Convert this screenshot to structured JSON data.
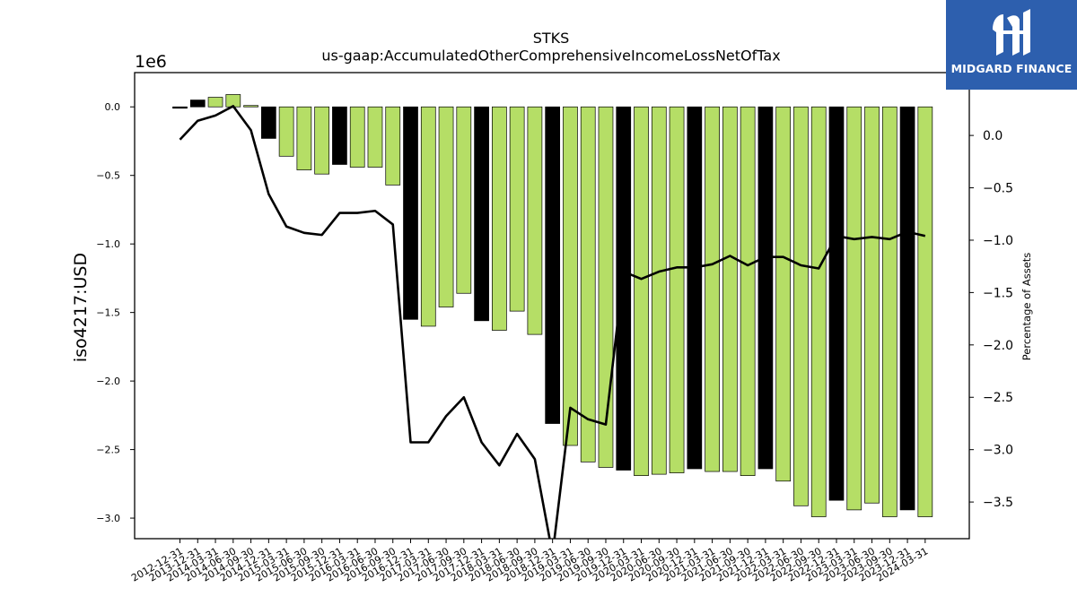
{
  "logo": {
    "text": "MIDGARD FINANCE",
    "background": "#2d5fae"
  },
  "chart_data": {
    "type": "bar",
    "title": "STKS",
    "subtitle": "us-gaap:AccumulatedOtherComprehensiveIncomeLossNetOfTax",
    "ylabel": "iso4217:USD",
    "y2label": "Percentage of Assets",
    "offset_label": "1e6",
    "ylim": [
      -3.15,
      0.25
    ],
    "y2lim": [
      -3.85,
      0.6
    ],
    "yticks": [
      0.0,
      -0.5,
      -1.0,
      -1.5,
      -2.0,
      -2.5,
      -3.0
    ],
    "ytick_labels": [
      "0.0",
      "−0.5",
      "−1.0",
      "−1.5",
      "−2.0",
      "−2.5",
      "−3.0"
    ],
    "y2ticks": [
      0.0,
      -0.5,
      -1.0,
      -1.5,
      -2.0,
      -2.5,
      -3.0,
      -3.5
    ],
    "y2tick_labels": [
      "0.0",
      "−0.5",
      "−1.0",
      "−1.5",
      "−2.0",
      "−2.5",
      "−3.0",
      "−3.5"
    ],
    "categories": [
      "2012-12-31",
      "2013-12-31",
      "2014-03-31",
      "2014-06-30",
      "2014-09-30",
      "2014-12-31",
      "2015-03-31",
      "2015-06-30",
      "2015-09-30",
      "2015-12-31",
      "2016-03-31",
      "2016-06-30",
      "2016-09-30",
      "2016-12-31",
      "2017-03-31",
      "2017-06-30",
      "2017-09-30",
      "2017-12-31",
      "2018-03-31",
      "2018-06-30",
      "2018-09-30",
      "2018-12-31",
      "2019-03-31",
      "2019-06-30",
      "2019-09-30",
      "2019-12-31",
      "2020-03-31",
      "2020-06-30",
      "2020-09-30",
      "2020-12-31",
      "2021-03-31",
      "2021-06-30",
      "2021-09-30",
      "2021-12-31",
      "2022-03-31",
      "2022-06-30",
      "2022-09-30",
      "2022-12-31",
      "2023-03-31",
      "2023-06-30",
      "2023-09-30",
      "2023-12-31",
      "2024-03-31"
    ],
    "series": [
      {
        "values": [
          -0.01,
          0.05,
          0.07,
          0.09,
          0.01,
          -0.23,
          -0.36,
          -0.46,
          -0.49,
          -0.42,
          -0.44,
          -0.44,
          -0.57,
          -1.55,
          -1.6,
          -1.46,
          -1.36,
          -1.56,
          -1.63,
          -1.49,
          -1.66,
          -2.31,
          -2.47,
          -2.59,
          -2.63,
          -2.65,
          -2.69,
          -2.68,
          -2.67,
          -2.64,
          -2.66,
          -2.66,
          -2.69,
          -2.64,
          -2.73,
          -2.91,
          -2.99,
          -2.87,
          -2.94,
          -2.89,
          -2.99,
          -2.94,
          -2.99
        ],
        "colors": [
          "black",
          "black",
          "green",
          "green",
          "green",
          "black",
          "green",
          "green",
          "green",
          "black",
          "green",
          "green",
          "green",
          "black",
          "green",
          "green",
          "green",
          "black",
          "green",
          "green",
          "green",
          "black",
          "green",
          "green",
          "green",
          "black",
          "green",
          "green",
          "green",
          "black",
          "green",
          "green",
          "green",
          "black",
          "green",
          "green",
          "green",
          "black",
          "green",
          "green",
          "green",
          "black",
          "green"
        ]
      },
      {
        "values": [
          -0.04,
          0.14,
          0.19,
          0.28,
          0.05,
          -0.56,
          -0.87,
          -0.93,
          -0.95,
          -0.74,
          -0.74,
          -0.72,
          -0.85,
          -2.93,
          -2.93,
          -2.68,
          -2.5,
          -2.93,
          -3.15,
          -2.85,
          -3.09,
          -4.0,
          -2.6,
          -2.71,
          -2.76,
          -1.3,
          -1.37,
          -1.3,
          -1.26,
          -1.26,
          -1.23,
          -1.15,
          -1.24,
          -1.16,
          -1.16,
          -1.24,
          -1.27,
          -0.96,
          -0.99,
          -0.97,
          -0.99,
          -0.92,
          -0.96
        ]
      }
    ],
    "colors": {
      "green": "#b5de66",
      "black": "#000000",
      "line": "#000000"
    }
  }
}
